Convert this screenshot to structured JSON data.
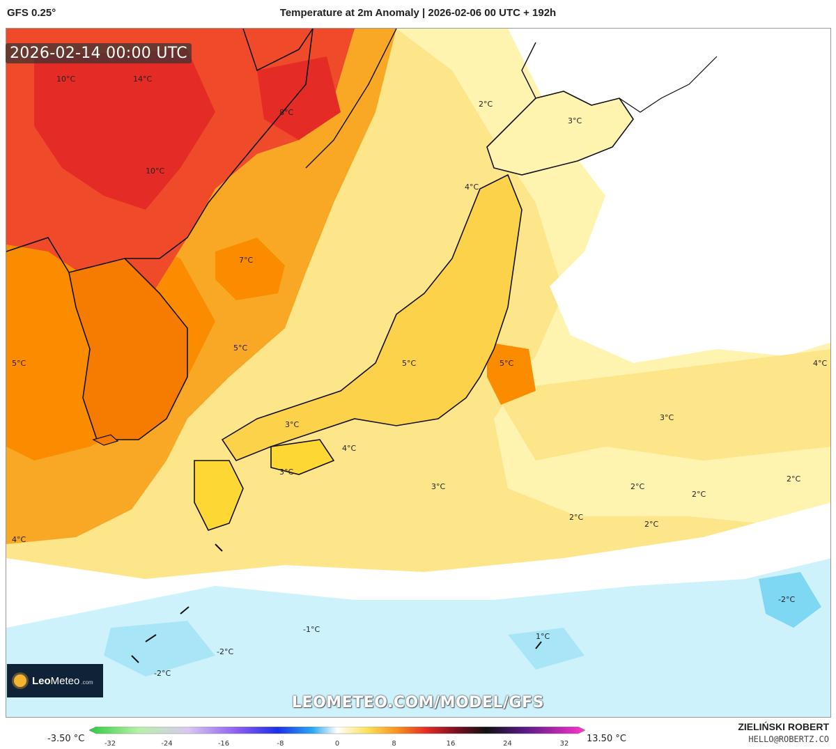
{
  "header": {
    "model": "GFS 0.25°",
    "title": "Temperature at 2m Anomaly | 2026-02-06 00 UTC + 192h"
  },
  "timestamp": "2026-02-14 00:00 UTC",
  "map_labels": [
    {
      "text": "10°C"
    },
    {
      "text": "14°C"
    },
    {
      "text": "8°C"
    },
    {
      "text": "10°C"
    },
    {
      "text": "7°C"
    },
    {
      "text": "5°C"
    },
    {
      "text": "5°C"
    },
    {
      "text": "5°C"
    },
    {
      "text": "5°C"
    },
    {
      "text": "4°C"
    },
    {
      "text": "2°C"
    },
    {
      "text": "3°C"
    },
    {
      "text": "4°C"
    },
    {
      "text": "3°C"
    },
    {
      "text": "3°C"
    },
    {
      "text": "4°C"
    },
    {
      "text": "3°C"
    },
    {
      "text": "3°C"
    },
    {
      "text": "2°C"
    },
    {
      "text": "2°C"
    },
    {
      "text": "2°C"
    },
    {
      "text": "2°C"
    },
    {
      "text": "2°C"
    },
    {
      "text": "4°C"
    },
    {
      "text": "-2°C"
    },
    {
      "text": "-1°C"
    },
    {
      "text": "-2°C"
    },
    {
      "text": "-2°C"
    },
    {
      "text": "1°C"
    }
  ],
  "watermark_url": "LEOMETEO.COM/MODEL/GFS",
  "logo": {
    "brand_bold": "Leo",
    "brand_light": "Meteo",
    "tld": ".com"
  },
  "colorbar": {
    "min_label": "-3.50 °C",
    "max_label": "13.50 °C",
    "ticks": [
      "-32",
      "-24",
      "-16",
      "-8",
      "0",
      "8",
      "16",
      "24",
      "32"
    ]
  },
  "author": "ZIELIŃSKI ROBERT",
  "email": "HELLO@ROBERTZ.CO",
  "colors": {
    "hot": "#e8332a",
    "warm": "#f7941d",
    "mild": "#fdd835",
    "light": "#fff3b0",
    "neutral": "#ffffff",
    "cool": "#bfeefb",
    "cold": "#7fd8f3"
  }
}
